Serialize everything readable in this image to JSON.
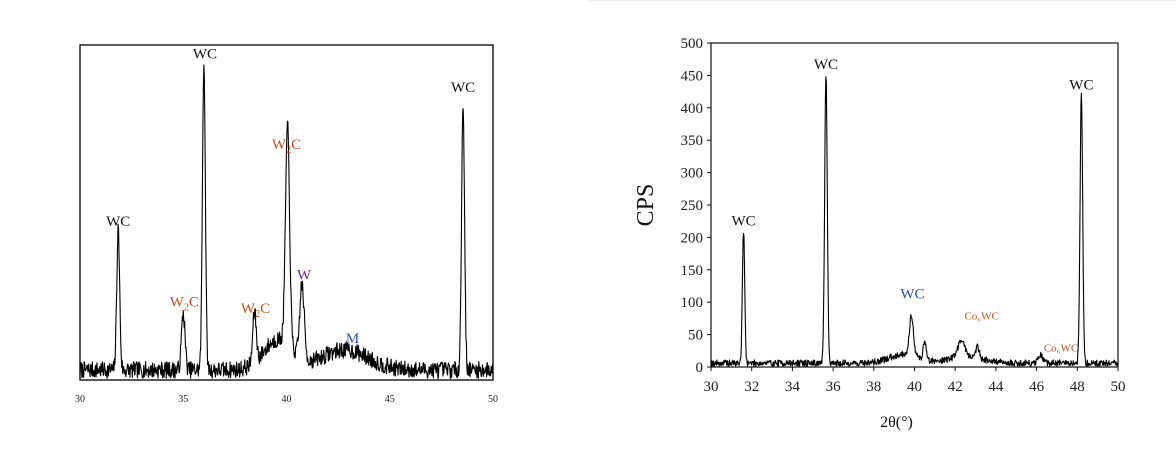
{
  "chart_data": [
    {
      "type": "line",
      "title": "",
      "xlabel": "",
      "ylabel": "",
      "xlim": [
        30,
        50
      ],
      "ylim": [
        0,
        100
      ],
      "y_ticks_shown": false,
      "x_ticks": [
        30,
        35,
        40,
        45,
        50
      ],
      "grid": false,
      "series": [
        {
          "color": "#000000",
          "peaks": [
            {
              "x": 31.85,
              "height": 42,
              "width": 0.1
            },
            {
              "x": 35.0,
              "height": 17,
              "width": 0.12
            },
            {
              "x": 36.0,
              "height": 92,
              "width": 0.1
            },
            {
              "x": 38.45,
              "height": 15,
              "width": 0.12
            },
            {
              "x": 40.05,
              "height": 65,
              "width": 0.14
            },
            {
              "x": 40.75,
              "height": 22,
              "width": 0.15
            },
            {
              "x": 48.55,
              "height": 80,
              "width": 0.1
            }
          ],
          "baseline": 3,
          "noise": 2.5,
          "humps": [
            {
              "x": 39.6,
              "height": 9,
              "width": 1.0
            },
            {
              "x": 42.8,
              "height": 6,
              "width": 1.6
            }
          ]
        }
      ],
      "annotations": [
        {
          "text": "WC",
          "x": 31.85,
          "y": 46,
          "color": "#111111"
        },
        {
          "text": "W",
          "sub": "2",
          "tail": "C",
          "x": 35.05,
          "y": 22,
          "color": "#c0501a"
        },
        {
          "text": "WC",
          "x": 36.05,
          "y": 96,
          "color": "#111111"
        },
        {
          "text": "W",
          "sub": "2",
          "tail": "C",
          "x": 38.5,
          "y": 20,
          "color": "#c0501a"
        },
        {
          "text": "W",
          "sub": "2",
          "tail": "C",
          "x": 40.0,
          "y": 69,
          "color": "#c0501a"
        },
        {
          "text": "W",
          "x": 40.85,
          "y": 30,
          "color": "#6a2c8a"
        },
        {
          "text": "M",
          "x": 43.2,
          "y": 11,
          "color": "#2a4fa8"
        },
        {
          "text": "WC",
          "x": 48.55,
          "y": 86,
          "color": "#111111"
        }
      ]
    },
    {
      "type": "line",
      "title": "",
      "xlabel": "2θ(°)",
      "ylabel": "CPS",
      "xlim": [
        30,
        50
      ],
      "ylim": [
        0,
        500
      ],
      "x_ticks": [
        30,
        32,
        34,
        36,
        38,
        40,
        42,
        44,
        46,
        48,
        50
      ],
      "y_ticks": [
        0,
        50,
        100,
        150,
        200,
        250,
        300,
        350,
        400,
        450,
        500
      ],
      "grid": false,
      "series": [
        {
          "color": "#000000",
          "peaks": [
            {
              "x": 31.6,
              "height": 205,
              "width": 0.08
            },
            {
              "x": 35.65,
              "height": 448,
              "width": 0.09
            },
            {
              "x": 39.85,
              "height": 62,
              "width": 0.14
            },
            {
              "x": 40.5,
              "height": 28,
              "width": 0.1
            },
            {
              "x": 42.3,
              "height": 25,
              "width": 0.25
            },
            {
              "x": 43.1,
              "height": 18,
              "width": 0.12
            },
            {
              "x": 46.2,
              "height": 12,
              "width": 0.15
            },
            {
              "x": 48.2,
              "height": 418,
              "width": 0.09
            }
          ],
          "baseline": 6,
          "noise": 5,
          "humps": [
            {
              "x": 39.5,
              "height": 14,
              "width": 1.0
            },
            {
              "x": 42.5,
              "height": 10,
              "width": 1.2
            }
          ]
        }
      ],
      "annotations": [
        {
          "text": "WC",
          "x": 31.6,
          "y": 218,
          "color": "#111111"
        },
        {
          "text": "WC",
          "x": 35.65,
          "y": 460,
          "color": "#111111"
        },
        {
          "text": "WC",
          "x": 39.9,
          "y": 106,
          "color": "#2a4fa8"
        },
        {
          "text": "Co₆WC",
          "x": 43.3,
          "y": 73,
          "color": "#c0501a"
        },
        {
          "text": "Co₆WC",
          "x": 47.2,
          "y": 24,
          "color": "#c0501a"
        },
        {
          "text": "WC",
          "x": 48.2,
          "y": 428,
          "color": "#111111"
        }
      ]
    }
  ]
}
